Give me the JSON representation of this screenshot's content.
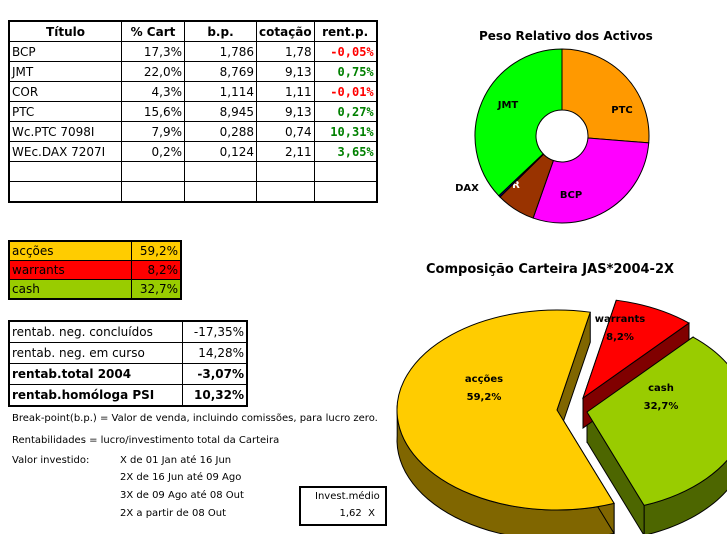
{
  "portfolio_table": {
    "headers": [
      "Título",
      "% Cart",
      "b.p.",
      "cotação",
      "rent.p."
    ],
    "rows": [
      {
        "titulo": "BCP",
        "cart": "17,3%",
        "bp": "1,786",
        "cotacao": "1,78",
        "rent": "-0,05%",
        "rent_sign": "neg"
      },
      {
        "titulo": "JMT",
        "cart": "22,0%",
        "bp": "8,769",
        "cotacao": "9,13",
        "rent": "0,75%",
        "rent_sign": "pos"
      },
      {
        "titulo": "COR",
        "cart": "4,3%",
        "bp": "1,114",
        "cotacao": "1,11",
        "rent": "-0,01%",
        "rent_sign": "neg"
      },
      {
        "titulo": "PTC",
        "cart": "15,6%",
        "bp": "8,945",
        "cotacao": "9,13",
        "rent": "0,27%",
        "rent_sign": "pos"
      },
      {
        "titulo": "Wc.PTC 7098I",
        "cart": "7,9%",
        "bp": "0,288",
        "cotacao": "0,74",
        "rent": "10,31%",
        "rent_sign": "pos"
      },
      {
        "titulo": "WEc.DAX 7207I",
        "cart": "0,2%",
        "bp": "0,124",
        "cotacao": "2,11",
        "rent": "3,65%",
        "rent_sign": "pos"
      },
      {
        "titulo": "",
        "cart": "",
        "bp": "",
        "cotacao": "",
        "rent": "",
        "rent_sign": ""
      },
      {
        "titulo": "",
        "cart": "",
        "bp": "",
        "cotacao": "",
        "rent": "",
        "rent_sign": ""
      }
    ]
  },
  "composition_table": {
    "rows": [
      {
        "label": "acções",
        "value": "59,2%",
        "color": "#ffcc00"
      },
      {
        "label": "warrants",
        "value": "8,2%",
        "color": "#ff0000"
      },
      {
        "label": "cash",
        "value": "32,7%",
        "color": "#99cc00"
      }
    ]
  },
  "returns_table": {
    "rows": [
      {
        "label": "rentab. neg. concluídos",
        "value": "-17,35%",
        "bold": false
      },
      {
        "label": "rentab. neg. em curso",
        "value": "14,28%",
        "bold": false
      },
      {
        "label": "rentab.total 2004",
        "value": "-3,07%",
        "bold": true
      },
      {
        "label": "rentab.homóloga PSI",
        "value": "10,32%",
        "bold": true
      }
    ]
  },
  "notes": {
    "breakpoint": "Break-point(b.p.) = Valor de venda, incluindo comissões, para lucro zero.",
    "rentabilidades": "Rentabilidades = lucro/investimento total da Carteira",
    "valor_investido_label": "Valor investido:",
    "periods": [
      "X de 01 Jan até 16 Jun",
      "2X de 16 Jun até 09 Ago",
      "3X de 09 Ago até 08 Out",
      "2X a partir de 08 Out"
    ]
  },
  "invest_box": {
    "label": "Invest.médio",
    "value": "1,62  X"
  },
  "chart_data": [
    {
      "type": "pie",
      "variant": "donut",
      "title": "Peso Relativo dos Activos",
      "categories": [
        "PTC",
        "BCP",
        "COR",
        "DAX",
        "JMT"
      ],
      "values": [
        15.6,
        17.3,
        4.3,
        0.2,
        22.0
      ],
      "colors": [
        "#ff9900",
        "#ff00ff",
        "#993300",
        "#000080",
        "#00ff00"
      ],
      "labels_shown": [
        "PTC",
        "BCP",
        "COR",
        "DAX",
        "JMT"
      ],
      "legend": "none"
    },
    {
      "type": "pie",
      "variant": "3d-exploded",
      "title": "Composição Carteira JAS*2004-2X",
      "categories": [
        "acções",
        "warrants",
        "cash"
      ],
      "values": [
        59.2,
        8.2,
        32.7
      ],
      "data_labels": [
        "acções 59,2%",
        "warrants 8,2%",
        "cash 32,7%"
      ],
      "colors": [
        "#ffcc00",
        "#ff0000",
        "#99cc00"
      ],
      "legend": "none"
    }
  ]
}
